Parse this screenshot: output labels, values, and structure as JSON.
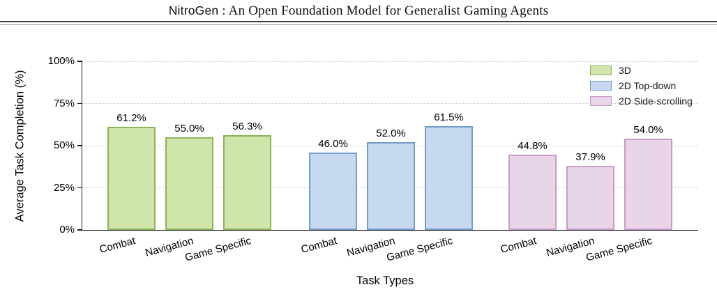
{
  "header": {
    "title_name": "NitroGen",
    "title_rest": " : An Open Foundation Model for Generalist Gaming Agents"
  },
  "chart_data": {
    "type": "bar",
    "title": "",
    "xlabel": "Task Types",
    "ylabel": "Average Task Completion (%)",
    "ylim": [
      0,
      100
    ],
    "ytick_values": [
      0,
      25,
      50,
      75,
      100
    ],
    "ytick_labels": [
      "0%",
      "25%",
      "50%",
      "75%",
      "100%"
    ],
    "grid": "horizontal-dotted",
    "legend_position": "upper-right",
    "legend_frame": false,
    "categories": [
      "Combat",
      "Navigation",
      "Game Specific"
    ],
    "series": [
      {
        "name": "3D",
        "values": [
          61.2,
          55.0,
          56.3
        ],
        "fill_color": "#d0e5ac",
        "edge_color": "#8cb45a"
      },
      {
        "name": "2D Top-down",
        "values": [
          46.0,
          52.0,
          61.5
        ],
        "fill_color": "#c7d9f0",
        "edge_color": "#739bc8"
      },
      {
        "name": "2D Side-scrolling",
        "values": [
          44.8,
          37.9,
          54.0
        ],
        "fill_color": "#e8d5e8",
        "edge_color": "#c89bc8"
      }
    ],
    "value_labels": [
      [
        "61.2%",
        "55.0%",
        "56.3%"
      ],
      [
        "46.0%",
        "52.0%",
        "61.5%"
      ],
      [
        "44.8%",
        "37.9%",
        "54.0%"
      ]
    ],
    "value_suffix": "%"
  }
}
